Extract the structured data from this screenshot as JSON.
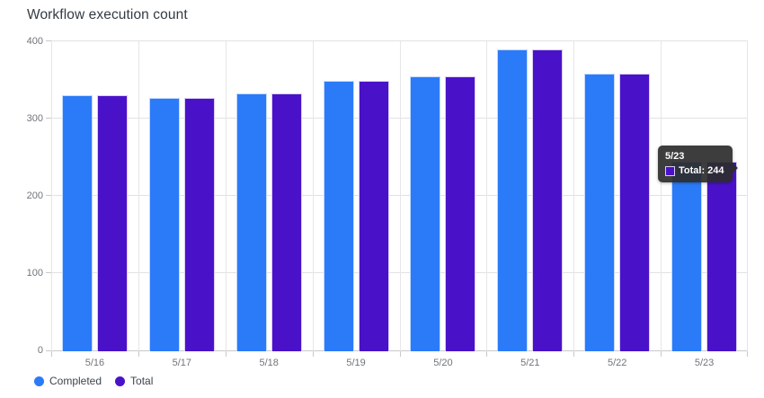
{
  "title": "Workflow execution count",
  "chart_data": {
    "type": "bar",
    "title": "Workflow execution count",
    "categories": [
      "5/16",
      "5/17",
      "5/18",
      "5/19",
      "5/20",
      "5/21",
      "5/22",
      "5/23"
    ],
    "series": [
      {
        "name": "Completed",
        "color": "#2b7bf8",
        "border_color": "#c3d8fd",
        "values": [
          330,
          327,
          333,
          349,
          355,
          390,
          358,
          244
        ]
      },
      {
        "name": "Total",
        "color": "#4a12c8",
        "border_color": "#d7cdf2",
        "values": [
          330,
          327,
          333,
          349,
          355,
          390,
          358,
          244
        ]
      }
    ],
    "xlabel": "",
    "ylabel": "",
    "ylim": [
      0,
      400
    ],
    "yticks": [
      0,
      100,
      200,
      300,
      400
    ],
    "grid": true,
    "legend_position": "bottom-left"
  },
  "legend": {
    "items": [
      {
        "label": "Completed",
        "color": "#2b7bf8"
      },
      {
        "label": "Total",
        "color": "#4a12c8"
      }
    ]
  },
  "tooltip": {
    "title": "5/23",
    "series": "Total",
    "value": 244,
    "label": "Total: 244",
    "swatch_color": "#4a12c8",
    "swatch_border": "#d7cdf2"
  },
  "colors": {
    "background": "#ffffff",
    "grid_line": "#e2e2e2",
    "axis_line": "#c9c9c9",
    "axis_text": "#70757a",
    "title_text": "#333b44",
    "legend_text": "#3f454d",
    "tooltip_bg": "#2d2d2d",
    "tooltip_text": "#ffffff"
  }
}
